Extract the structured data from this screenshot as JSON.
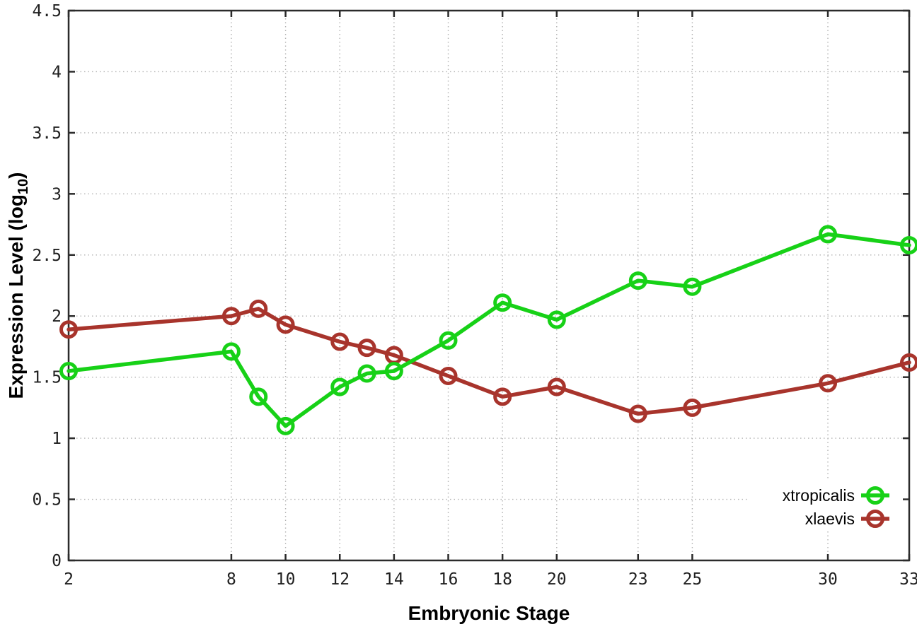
{
  "figure": {
    "background": "#ffffff",
    "border_color": "#2b2b2b",
    "grid_color": "#b3b3b3",
    "tick_text_color": "#1f1f1f"
  },
  "chart_data": {
    "type": "line",
    "title": "",
    "xlabel": "Embryonic Stage",
    "ylabel": "Expression Level (log10)",
    "ylabel_rich": {
      "prefix": "Expression Level (log",
      "subscript": "10",
      "suffix": ")"
    },
    "x": [
      2,
      8,
      9,
      10,
      12,
      13,
      14,
      16,
      18,
      20,
      23,
      25,
      30,
      33
    ],
    "series": [
      {
        "name": "xtropicalis",
        "color": "#17d117",
        "marker": "open-circle",
        "values": [
          1.55,
          1.71,
          1.34,
          1.1,
          1.42,
          1.53,
          1.55,
          1.8,
          2.11,
          1.97,
          2.29,
          2.24,
          2.67,
          2.58
        ]
      },
      {
        "name": "xlaevis",
        "color": "#a8342c",
        "marker": "open-circle",
        "values": [
          1.89,
          2.0,
          2.06,
          1.93,
          1.79,
          1.74,
          1.68,
          1.51,
          1.34,
          1.42,
          1.2,
          1.25,
          1.45,
          1.62
        ]
      }
    ],
    "xticks": {
      "values": [
        2,
        8,
        10,
        12,
        14,
        16,
        18,
        20,
        23,
        25,
        30,
        33
      ],
      "labels": [
        "2",
        "8",
        "10",
        "12",
        "14",
        "16",
        "18",
        "20",
        "23",
        "25",
        "30",
        "33"
      ]
    },
    "yticks": {
      "values": [
        0,
        0.5,
        1,
        1.5,
        2,
        2.5,
        3,
        3.5,
        4,
        4.5
      ],
      "labels": [
        "0",
        "0.5",
        "1",
        "1.5",
        "2",
        "2.5",
        "3",
        "3.5",
        "4",
        "4.5"
      ]
    },
    "xlim": [
      2,
      33
    ],
    "ylim": [
      0,
      4.5
    ],
    "grid": true,
    "legend_position": "bottom-right"
  }
}
